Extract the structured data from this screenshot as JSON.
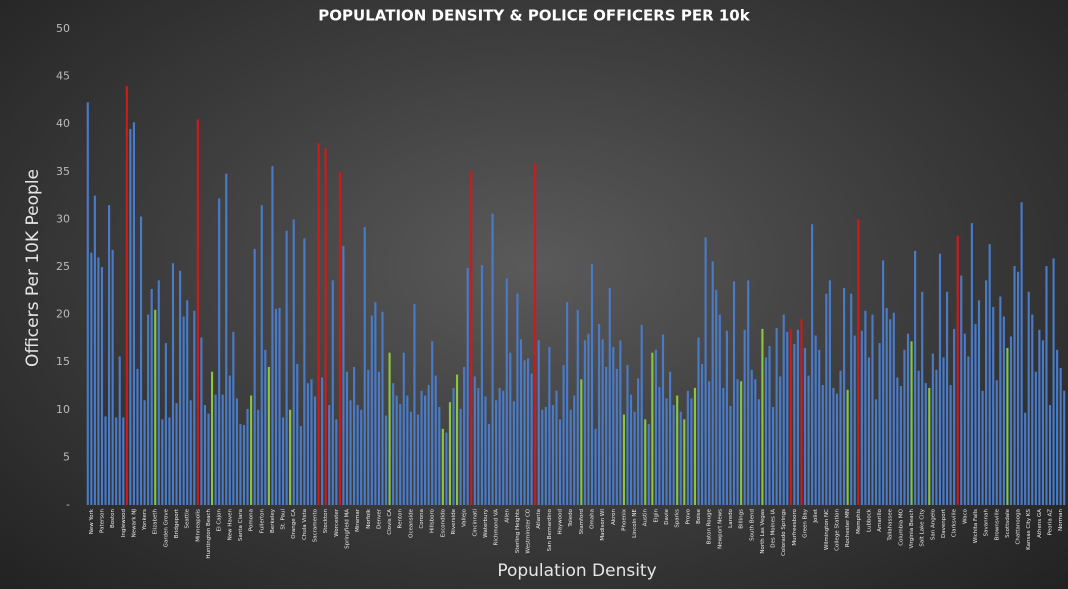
{
  "chart_data": {
    "type": "bar",
    "title": "POPULATION DENSITY & POLICE OFFICERS PER 10k",
    "xlabel": "Population Density",
    "ylabel": "Officers Per 10K People",
    "ylim": [
      0,
      50
    ],
    "yticks": [
      {
        "value": 0,
        "label": "-"
      },
      5,
      10,
      15,
      20,
      25,
      30,
      35,
      40,
      45,
      50
    ],
    "categories": [
      null,
      "New York",
      null,
      null,
      "Paterson",
      null,
      null,
      "Boston",
      null,
      null,
      "Inglewood",
      null,
      null,
      "Newark NJ",
      null,
      null,
      "Yonkers",
      null,
      null,
      "Elizabeth",
      null,
      null,
      "Garden Grove",
      null,
      null,
      "Bridgeport",
      null,
      null,
      "Seattle",
      null,
      null,
      "Minneapolis",
      null,
      null,
      "Huntington Beach",
      null,
      null,
      "El Cajon",
      null,
      null,
      "New Haven",
      null,
      null,
      "Santa Clara",
      null,
      null,
      "Pomona",
      null,
      null,
      "Fullerton",
      null,
      null,
      "Berkeley",
      null,
      null,
      "St. Paul",
      null,
      null,
      "Orange CA",
      null,
      null,
      "Chula Vista",
      null,
      null,
      "Sacramento",
      null,
      null,
      "Stockton",
      null,
      null,
      "Worcester",
      null,
      null,
      "Springfield MA",
      null,
      null,
      "Miramar",
      null,
      null,
      "Norfolk",
      null,
      null,
      "Denver",
      null,
      null,
      "Clovis CA",
      null,
      null,
      "Renton",
      null,
      null,
      "Oceanside",
      null,
      null,
      "Corona",
      null,
      null,
      "Hillsboro",
      null,
      null,
      "Escondido",
      null,
      null,
      "Riverside",
      null,
      null,
      "Vallejo",
      null,
      null,
      "Cincinnati",
      null,
      null,
      "Waterbury",
      null,
      null,
      "Richmond VA",
      null,
      null,
      "Allen",
      null,
      null,
      "Sterling Heights",
      null,
      null,
      "Westminster CO",
      null,
      null,
      "Atlanta",
      null,
      null,
      "San Bernardino",
      null,
      null,
      "Haywood",
      null,
      null,
      "Toledo",
      null,
      null,
      "Stamford",
      null,
      null,
      "Omaha",
      null,
      null,
      "Madison WI",
      null,
      null,
      "Akron",
      null,
      null,
      "Phoenix",
      null,
      null,
      "Lincoln NE",
      null,
      null,
      "Austin",
      null,
      null,
      "Elgin",
      null,
      null,
      "Davie",
      null,
      null,
      "Sparks",
      null,
      null,
      "Provo",
      null,
      null,
      "Boise",
      null,
      null,
      "Baton Rouge",
      null,
      null,
      "Newport News",
      null,
      null,
      "Laredo",
      null,
      null,
      "Billings",
      null,
      null,
      "South Bend",
      null,
      null,
      "North Las Vegas",
      null,
      null,
      "Des Moines IA",
      null,
      null,
      "Colorado Springs",
      null,
      null,
      "Murfreesboro",
      null,
      null,
      "Green Bay",
      null,
      null,
      "Joliet",
      null,
      null,
      "Wilmington NC",
      null,
      null,
      "College Station",
      null,
      null,
      "Rochester MN",
      null,
      null,
      "Memphis",
      null,
      null,
      "Lubbock",
      null,
      null,
      "Amarillo",
      null,
      null,
      "Tallahassee",
      null,
      null,
      "Columbia MO",
      null,
      null,
      "Virginia Beach",
      null,
      null,
      "Salt Lake City",
      null,
      null,
      "San Angelo",
      null,
      null,
      "Davenport",
      null,
      null,
      "Clarksville",
      null,
      null,
      "Waco",
      null,
      null,
      "Wichita Falls",
      null,
      null,
      "Savannah",
      null,
      null,
      "Brownsville",
      null,
      null,
      "Scottsdale",
      null,
      null,
      "Chattanooga",
      null,
      null,
      "Kansas City KS",
      null,
      null,
      "Athens GA",
      null,
      null,
      "Peoria AZ",
      null,
      null,
      "Norman",
      null
    ],
    "values": [
      42.3,
      26.5,
      32.5,
      26,
      25,
      9.3,
      31.5,
      26.8,
      9.2,
      15.6,
      9.2,
      44,
      39.5,
      40.2,
      14.3,
      30.3,
      11,
      20,
      22.7,
      20.5,
      23.6,
      9,
      17,
      9.2,
      25.4,
      10.7,
      24.6,
      19.8,
      21.5,
      11,
      20.4,
      40.5,
      17.6,
      10.5,
      9.6,
      14,
      11.6,
      32.2,
      11.6,
      34.8,
      13.6,
      18.2,
      11.2,
      8.5,
      8.4,
      10.1,
      11.5,
      26.9,
      10,
      31.5,
      16.3,
      14.5,
      35.6,
      20.6,
      20.7,
      9.2,
      28.8,
      10,
      30,
      14.8,
      8.3,
      28,
      12.8,
      13.2,
      11.4,
      38,
      13.4,
      37.5,
      10.5,
      23.6,
      9,
      35,
      27.2,
      14,
      11,
      14.5,
      10.5,
      10,
      29.2,
      14.2,
      19.9,
      21.3,
      14,
      20.3,
      9.4,
      16,
      12.8,
      11.5,
      10.6,
      16,
      11.5,
      9.8,
      21.1,
      9.5,
      12,
      11.5,
      12.6,
      17.2,
      13.6,
      10.3,
      8,
      7.6,
      10.8,
      12.3,
      13.7,
      10.1,
      14.5,
      24.9,
      35.1,
      13.5,
      12.3,
      25.2,
      11.4,
      8.5,
      30.6,
      11,
      12.3,
      12,
      23.8,
      16,
      10.9,
      22.2,
      17.4,
      15.2,
      15.4,
      13.8,
      35.9,
      17.3,
      10,
      10.3,
      16.6,
      10.5,
      12,
      9,
      14.7,
      21.3,
      10,
      11.5,
      20.5,
      13.2,
      17.3,
      18,
      25.3,
      8,
      19,
      17.4,
      14.5,
      22.8,
      16.6,
      14.3,
      17.3,
      9.5,
      14.7,
      11.6,
      9.8,
      13.3,
      18.9,
      9,
      8.5,
      16,
      16.3,
      12.4,
      17.9,
      11.2,
      14,
      10.5,
      11.5,
      9.8,
      9,
      12,
      11.2,
      12.3,
      17.6,
      14.8,
      28.1,
      13,
      25.6,
      22.6,
      20,
      12.3,
      18.3,
      10.4,
      23.5,
      13.2,
      13,
      18.4,
      23.6,
      14.2,
      13.2,
      11.1,
      18.5,
      15.5,
      16.7,
      10.3,
      18.6,
      13.5,
      20,
      18.2,
      18.5,
      16.9,
      18.4,
      19.5,
      16.5,
      13.6,
      29.5,
      17.8,
      16.3,
      12.6,
      22.2,
      23.6,
      12.3,
      11.7,
      14.1,
      22.8,
      12.1,
      22.2,
      17.8,
      30,
      18.3,
      20.4,
      15.5,
      20,
      11.1,
      17,
      25.7,
      20.7,
      19.5,
      20.2,
      13.4,
      12.5,
      16.3,
      18,
      17.2,
      26.7,
      14.1,
      22.4,
      12.8,
      12.3,
      15.9,
      14.2,
      26.4,
      15.5,
      22.4,
      12.6,
      18.5,
      28.3,
      24.1,
      18,
      15.6,
      29.6,
      19,
      21.5,
      12,
      23.6,
      27.4,
      20.8,
      13.1,
      21.9,
      19.8,
      16.5,
      17.7,
      25.1,
      24.5,
      31.8,
      9.7,
      22.4,
      20,
      14,
      18.4,
      17.3,
      25.1,
      10.5,
      25.9,
      16.3,
      14.4,
      12
    ],
    "colors": [
      "#4a7bc8",
      "#4a7bc8",
      "#4a7bc8",
      "#4a7bc8",
      "#4a7bc8",
      "#4a7bc8",
      "#4a7bc8",
      "#4a7bc8",
      "#4a7bc8",
      "#4a7bc8",
      "#4a7bc8",
      "#d01a1a",
      "#4a7bc8",
      "#4a7bc8",
      "#4a7bc8",
      "#4a7bc8",
      "#4a7bc8",
      "#4a7bc8",
      "#4a7bc8",
      "#8cc63f",
      "#4a7bc8",
      "#4a7bc8",
      "#4a7bc8",
      "#4a7bc8",
      "#4a7bc8",
      "#4a7bc8",
      "#4a7bc8",
      "#4a7bc8",
      "#4a7bc8",
      "#4a7bc8",
      "#4a7bc8",
      "#d01a1a",
      "#4a7bc8",
      "#4a7bc8",
      "#4a7bc8",
      "#8cc63f",
      "#4a7bc8",
      "#4a7bc8",
      "#4a7bc8",
      "#4a7bc8",
      "#4a7bc8",
      "#4a7bc8",
      "#4a7bc8",
      "#4a7bc8",
      "#4a7bc8",
      "#4a7bc8",
      "#8cc63f",
      "#4a7bc8",
      "#4a7bc8",
      "#4a7bc8",
      "#4a7bc8",
      "#8cc63f",
      "#4a7bc8",
      "#4a7bc8",
      "#4a7bc8",
      "#4a7bc8",
      "#4a7bc8",
      "#8cc63f",
      "#4a7bc8",
      "#4a7bc8",
      "#4a7bc8",
      "#4a7bc8",
      "#4a7bc8",
      "#4a7bc8",
      "#4a7bc8",
      "#d01a1a",
      "#4a7bc8",
      "#d01a1a",
      "#4a7bc8",
      "#4a7bc8",
      "#4a7bc8",
      "#d01a1a",
      "#4a7bc8",
      "#4a7bc8",
      "#4a7bc8",
      "#4a7bc8",
      "#4a7bc8",
      "#4a7bc8",
      "#4a7bc8",
      "#4a7bc8",
      "#4a7bc8",
      "#4a7bc8",
      "#4a7bc8",
      "#4a7bc8",
      "#4a7bc8",
      "#8cc63f",
      "#4a7bc8",
      "#4a7bc8",
      "#4a7bc8",
      "#4a7bc8",
      "#4a7bc8",
      "#4a7bc8",
      "#4a7bc8",
      "#4a7bc8",
      "#4a7bc8",
      "#4a7bc8",
      "#4a7bc8",
      "#4a7bc8",
      "#4a7bc8",
      "#4a7bc8",
      "#8cc63f",
      "#4a7bc8",
      "#8cc63f",
      "#4a7bc8",
      "#8cc63f",
      "#4a7bc8",
      "#4a7bc8",
      "#4a7bc8",
      "#d01a1a",
      "#4a7bc8",
      "#4a7bc8",
      "#4a7bc8",
      "#4a7bc8",
      "#4a7bc8",
      "#4a7bc8",
      "#4a7bc8",
      "#4a7bc8",
      "#4a7bc8",
      "#4a7bc8",
      "#4a7bc8",
      "#4a7bc8",
      "#4a7bc8",
      "#4a7bc8",
      "#4a7bc8",
      "#4a7bc8",
      "#4a7bc8",
      "#d01a1a",
      "#4a7bc8",
      "#4a7bc8",
      "#4a7bc8",
      "#4a7bc8",
      "#4a7bc8",
      "#4a7bc8",
      "#4a7bc8",
      "#4a7bc8",
      "#4a7bc8",
      "#4a7bc8",
      "#4a7bc8",
      "#4a7bc8",
      "#8cc63f",
      "#4a7bc8",
      "#4a7bc8",
      "#4a7bc8",
      "#4a7bc8",
      "#4a7bc8",
      "#4a7bc8",
      "#4a7bc8",
      "#4a7bc8",
      "#4a7bc8",
      "#4a7bc8",
      "#4a7bc8",
      "#8cc63f",
      "#4a7bc8",
      "#4a7bc8",
      "#4a7bc8",
      "#4a7bc8",
      "#4a7bc8",
      "#8cc63f",
      "#4a7bc8",
      "#8cc63f",
      "#4a7bc8",
      "#4a7bc8",
      "#4a7bc8",
      "#4a7bc8",
      "#4a7bc8",
      "#4a7bc8",
      "#8cc63f",
      "#4a7bc8",
      "#8cc63f",
      "#4a7bc8",
      "#4a7bc8",
      "#8cc63f",
      "#4a7bc8",
      "#4a7bc8",
      "#4a7bc8",
      "#4a7bc8",
      "#4a7bc8",
      "#4a7bc8",
      "#4a7bc8",
      "#4a7bc8",
      "#4a7bc8",
      "#4a7bc8",
      "#4a7bc8",
      "#4a7bc8",
      "#8cc63f",
      "#4a7bc8",
      "#4a7bc8",
      "#4a7bc8",
      "#4a7bc8",
      "#4a7bc8",
      "#8cc63f",
      "#4a7bc8",
      "#4a7bc8",
      "#4a7bc8",
      "#4a7bc8",
      "#4a7bc8",
      "#4a7bc8",
      "#4a7bc8",
      "#d01a1a",
      "#4a7bc8",
      "#4a7bc8",
      "#d01a1a",
      "#4a7bc8",
      "#4a7bc8",
      "#4a7bc8",
      "#4a7bc8",
      "#4a7bc8",
      "#4a7bc8",
      "#4a7bc8",
      "#4a7bc8",
      "#4a7bc8",
      "#4a7bc8",
      "#4a7bc8",
      "#4a7bc8",
      "#8cc63f",
      "#4a7bc8",
      "#4a7bc8",
      "#d01a1a",
      "#4a7bc8",
      "#4a7bc8",
      "#4a7bc8",
      "#4a7bc8",
      "#4a7bc8",
      "#4a7bc8",
      "#4a7bc8",
      "#4a7bc8",
      "#4a7bc8",
      "#4a7bc8",
      "#4a7bc8",
      "#4a7bc8",
      "#4a7bc8",
      "#4a7bc8",
      "#8cc63f",
      "#4a7bc8",
      "#4a7bc8",
      "#4a7bc8",
      "#4a7bc8",
      "#8cc63f",
      "#4a7bc8",
      "#4a7bc8",
      "#4a7bc8",
      "#4a7bc8",
      "#4a7bc8",
      "#4a7bc8",
      "#4a7bc8",
      "#d01a1a",
      "#4a7bc8",
      "#4a7bc8",
      "#4a7bc8",
      "#4a7bc8",
      "#4a7bc8",
      "#4a7bc8",
      "#4a7bc8",
      "#4a7bc8",
      "#4a7bc8",
      "#4a7bc8",
      "#4a7bc8",
      "#4a7bc8",
      "#4a7bc8",
      "#8cc63f",
      "#4a7bc8",
      "#4a7bc8",
      "#4a7bc8",
      "#4a7bc8",
      "#4a7bc8",
      "#4a7bc8",
      "#4a7bc8",
      "#4a7bc8",
      "#4a7bc8",
      "#4a7bc8",
      "#4a7bc8",
      "#4a7bc8",
      "#4a7bc8",
      "#4a7bc8",
      "#4a7bc8",
      "#4a7bc8"
    ]
  }
}
